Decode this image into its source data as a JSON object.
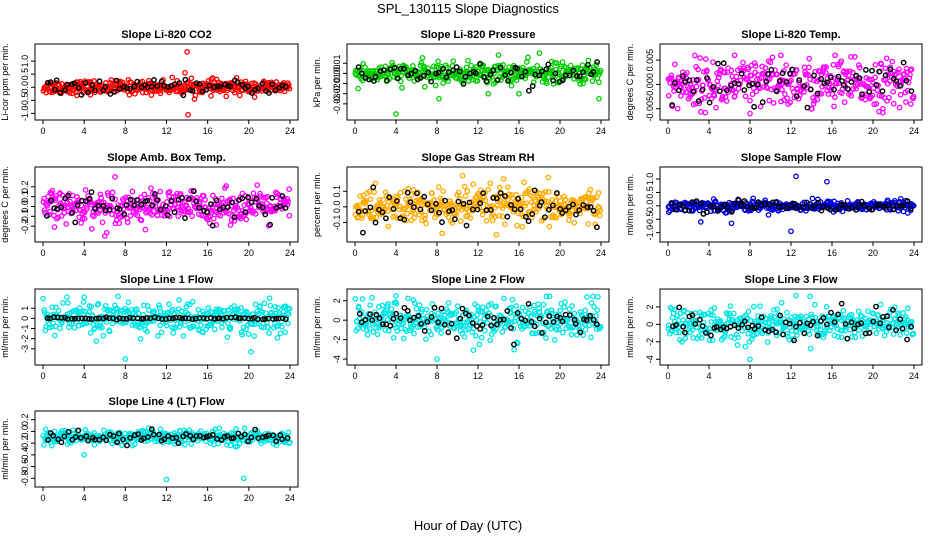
{
  "figure": {
    "title": "SPL_130115  Slope Diagnostics",
    "xlabel": "Hour of Day (UTC)"
  },
  "chart_data": [
    {
      "type": "scatter",
      "title": "Slope Li-820 CO2",
      "ylabel": "Li-cor ppm per min.",
      "xlim": [
        0,
        24
      ],
      "ylim": [
        -1.1,
        1.5
      ],
      "xticks": [
        0,
        4,
        8,
        12,
        16,
        20,
        24
      ],
      "yticks": [
        -1.0,
        -0.5,
        0.0,
        0.5,
        1.0
      ],
      "ytick_labels": [
        "-1.0",
        "-0.5",
        "0.0",
        "0.5",
        "1.0"
      ],
      "color": "#ff0000",
      "center": 0.0,
      "spread": 0.13,
      "outliers": [
        [
          14.0,
          1.35
        ],
        [
          14.1,
          -1.05
        ],
        [
          13.8,
          0.55
        ],
        [
          17.8,
          -0.35
        ]
      ],
      "black_spread": 0.12
    },
    {
      "type": "scatter",
      "title": "Slope Li-820 Pressure",
      "ylabel": "kPa per min.",
      "xlim": [
        0,
        24
      ],
      "ylim": [
        -0.042,
        0.025
      ],
      "xticks": [
        0,
        4,
        8,
        12,
        16,
        20,
        24
      ],
      "yticks": [
        -0.03,
        -0.02,
        -0.01,
        0.0,
        0.01
      ],
      "ytick_labels": [
        "-0.03",
        "-0.02",
        "-0.01",
        "0.00",
        "0.01"
      ],
      "color": "#00cc00",
      "center": 0.0,
      "spread": 0.005,
      "outliers": [
        [
          4.0,
          -0.04
        ],
        [
          8.2,
          -0.025
        ],
        [
          13.0,
          -0.02
        ],
        [
          14.0,
          0.018
        ],
        [
          16.0,
          -0.02
        ],
        [
          23.8,
          -0.025
        ],
        [
          18.0,
          0.02
        ],
        [
          0.3,
          -0.015
        ]
      ],
      "black_spread": 0.006
    },
    {
      "type": "scatter",
      "title": "Slope Li-820 Temp.",
      "ylabel": "degrees C per min.",
      "xlim": [
        0,
        24
      ],
      "ylim": [
        -0.0065,
        0.0075
      ],
      "xticks": [
        0,
        4,
        8,
        12,
        16,
        20,
        24
      ],
      "yticks": [
        -0.005,
        0.0,
        0.005
      ],
      "ytick_labels": [
        "-0.005",
        "0.000",
        "0.005"
      ],
      "color": "#ff00ff",
      "center": 0.0,
      "spread": 0.0025,
      "outliers": [
        [
          11.0,
          0.006
        ],
        [
          8.0,
          -0.006
        ],
        [
          16.3,
          0.006
        ],
        [
          6.5,
          0.006
        ]
      ],
      "black_spread": 0.002
    },
    {
      "type": "scatter",
      "title": "Slope Amb. Box Temp.",
      "ylabel": "degrees C per min.",
      "xlim": [
        0,
        24
      ],
      "ylim": [
        -0.32,
        0.36
      ],
      "xticks": [
        0,
        4,
        8,
        12,
        16,
        20,
        24
      ],
      "yticks": [
        -0.2,
        -0.1,
        0.0,
        0.1,
        0.2
      ],
      "ytick_labels": [
        "-0.2",
        "-0.1",
        "0.0",
        "0.1",
        "0.2"
      ],
      "color": "#ff00ff",
      "center": 0.0,
      "spread": 0.08,
      "outliers": [
        [
          7.0,
          0.3
        ],
        [
          6.0,
          -0.3
        ]
      ],
      "black_spread": 0.08
    },
    {
      "type": "scatter",
      "title": "Slope Gas Stream RH",
      "ylabel": "percent per min.",
      "xlim": [
        0,
        24
      ],
      "ylim": [
        -0.2,
        0.23
      ],
      "xticks": [
        0,
        4,
        8,
        12,
        16,
        20,
        24
      ],
      "yticks": [
        -0.1,
        0.0,
        0.1
      ],
      "ytick_labels": [
        "-0.1",
        "0.0",
        "0.1"
      ],
      "color": "#ffaa00",
      "center": 0.0,
      "spread": 0.06,
      "outliers": [
        [
          10.5,
          0.2
        ],
        [
          14.5,
          0.18
        ],
        [
          8.5,
          -0.17
        ]
      ],
      "black_spread": 0.05
    },
    {
      "type": "scatter",
      "title": "Slope Sample Flow",
      "ylabel": "ml/min per min.",
      "xlim": [
        0,
        24
      ],
      "ylim": [
        -1.2,
        1.3
      ],
      "xticks": [
        0,
        4,
        8,
        12,
        16,
        20,
        24
      ],
      "yticks": [
        -1.0,
        -0.5,
        0.0,
        0.5,
        1.0
      ],
      "ytick_labels": [
        "-1.0",
        "-0.5",
        "0.0",
        "0.5",
        "1.0"
      ],
      "color": "#0000dd",
      "center": 0.0,
      "spread": 0.1,
      "outliers": [
        [
          12.0,
          -0.95
        ],
        [
          12.5,
          1.1
        ],
        [
          3.2,
          -0.6
        ],
        [
          6.2,
          -0.65
        ],
        [
          15.5,
          0.9
        ]
      ],
      "black_spread": 0.1
    },
    {
      "type": "scatter",
      "title": "Slope Line 1 Flow",
      "ylabel": "ml/min per min.",
      "xlim": [
        0,
        24
      ],
      "ylim": [
        -4.2,
        2.5
      ],
      "xticks": [
        0,
        4,
        8,
        12,
        16,
        20,
        24
      ],
      "yticks": [
        -3,
        -2,
        -1,
        0,
        1
      ],
      "ytick_labels": [
        "-3",
        "-2",
        "-1",
        "0",
        "1"
      ],
      "color": "#00e5e5",
      "center": 0.0,
      "spread": 0.8,
      "outliers": [
        [
          8.0,
          -4.0
        ],
        [
          20.2,
          -3.3
        ],
        [
          4.0,
          2.1
        ]
      ],
      "black_spread": 0.05
    },
    {
      "type": "scatter",
      "title": "Slope Line 2 Flow",
      "ylabel": "ml/min per min.",
      "xlim": [
        0,
        24
      ],
      "ylim": [
        -4.2,
        2.8
      ],
      "xticks": [
        0,
        4,
        8,
        12,
        16,
        20,
        24
      ],
      "yticks": [
        -4,
        -2,
        0,
        2
      ],
      "ytick_labels": [
        "-4",
        "-2",
        "0",
        "2"
      ],
      "color": "#00e5e5",
      "center": 0.0,
      "spread": 1.0,
      "outliers": [
        [
          8.0,
          -4.0
        ],
        [
          4.0,
          2.5
        ]
      ],
      "black_spread": 0.8
    },
    {
      "type": "scatter",
      "title": "Slope Line 3 Flow",
      "ylabel": "ml/min per min.",
      "xlim": [
        0,
        24
      ],
      "ylim": [
        -4.2,
        3.6
      ],
      "xticks": [
        0,
        4,
        8,
        12,
        16,
        20,
        24
      ],
      "yticks": [
        -4,
        -2,
        0,
        2
      ],
      "ytick_labels": [
        "-4",
        "-2",
        "0",
        "2"
      ],
      "color": "#00e5e5",
      "center": 0.0,
      "spread": 1.0,
      "outliers": [
        [
          8.0,
          -4.0
        ],
        [
          12.5,
          3.3
        ]
      ],
      "black_spread": 0.8
    },
    {
      "type": "scatter",
      "title": "Slope Line 4 (LT) Flow",
      "ylabel": "ml/min per min.",
      "xlim": [
        0,
        24
      ],
      "ylim": [
        -0.88,
        0.28
      ],
      "xticks": [
        0,
        4,
        8,
        12,
        16,
        20,
        24
      ],
      "yticks": [
        -0.8,
        -0.6,
        -0.4,
        -0.2,
        0.0,
        0.2
      ],
      "ytick_labels": [
        "-0.8",
        "-0.6",
        "-0.4",
        "-0.2",
        "0.0",
        "0.2"
      ],
      "color": "#00e5e5",
      "center": -0.1,
      "spread": 0.06,
      "outliers": [
        [
          12.0,
          -0.82
        ],
        [
          19.5,
          -0.8
        ],
        [
          4.0,
          -0.4
        ]
      ],
      "black_spread": 0.05
    }
  ]
}
